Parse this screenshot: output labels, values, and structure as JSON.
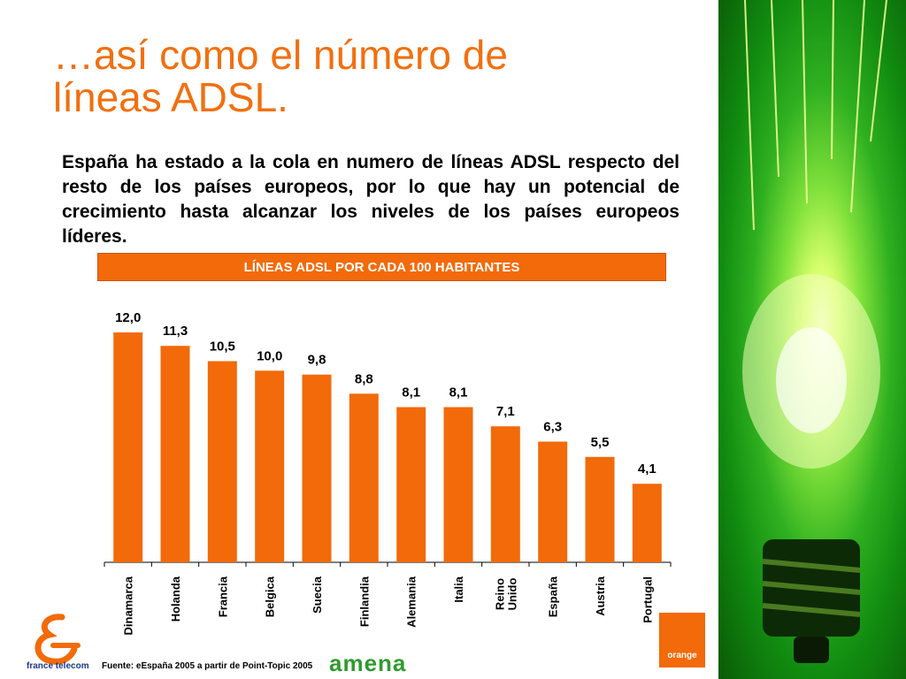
{
  "slide": {
    "title_line1": "…así como el número de",
    "title_line2": "líneas ADSL.",
    "body": "España ha estado a la cola en numero de líneas ADSL respecto del resto de los países europeos, por lo que hay un potencial de crecimiento hasta alcanzar los niveles de los países europeos líderes.",
    "source": "Fuente: eEspaña 2005 a partir de Point-Topic 2005",
    "amena_logo": "amena",
    "orange_logo": "orange",
    "france_telecom": "france telecom"
  },
  "chart_data": {
    "type": "bar",
    "title": "LÍNEAS ADSL POR CADA 100 HABITANTES",
    "categories": [
      "Dinamarca",
      "Holanda",
      "Francia",
      "Belgica",
      "Suecia",
      "Finlandia",
      "Alemania",
      "Italia",
      "Reino Unido",
      "España",
      "Austria",
      "Portugal"
    ],
    "values": [
      12.0,
      11.3,
      10.5,
      10.0,
      9.8,
      8.8,
      8.1,
      8.1,
      7.1,
      6.3,
      5.5,
      4.1
    ],
    "value_labels": [
      "12,0",
      "11,3",
      "10,5",
      "10,0",
      "9,8",
      "8,8",
      "8,1",
      "8,1",
      "7,1",
      "6,3",
      "5,5",
      "4,1"
    ],
    "xlabel": "",
    "ylabel": "",
    "ylim": [
      0,
      12.0
    ],
    "bar_color": "#f26a0a",
    "grid": false
  }
}
